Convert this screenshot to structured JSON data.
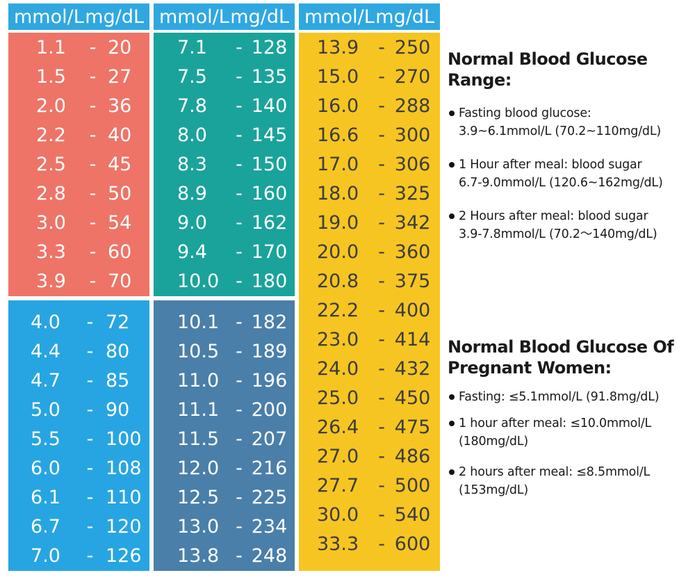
{
  "table": {
    "header": {
      "mmol": "mmol/L",
      "mg": "mg/dL"
    },
    "columns": [
      {
        "color": "#ee7467",
        "rows": [
          [
            "1.1",
            "20"
          ],
          [
            "1.5",
            "27"
          ],
          [
            "2.0",
            "36"
          ],
          [
            "2.2",
            "40"
          ],
          [
            "2.5",
            "45"
          ],
          [
            "2.8",
            "50"
          ],
          [
            "3.0",
            "54"
          ],
          [
            "3.3",
            "60"
          ],
          [
            "3.9",
            "70"
          ]
        ]
      },
      {
        "color": "#1aa39a",
        "rows": [
          [
            "7.1",
            "128"
          ],
          [
            "7.5",
            "135"
          ],
          [
            "7.8",
            "140"
          ],
          [
            "8.0",
            "145"
          ],
          [
            "8.3",
            "150"
          ],
          [
            "8.9",
            "160"
          ],
          [
            "9.0",
            "162"
          ],
          [
            "9.4",
            "170"
          ],
          [
            "10.0",
            "180"
          ]
        ]
      },
      {
        "color": "#f6c521",
        "rows": [
          [
            "13.9",
            "250"
          ],
          [
            "15.0",
            "270"
          ],
          [
            "16.0",
            "288"
          ],
          [
            "16.6",
            "300"
          ],
          [
            "17.0",
            "306"
          ],
          [
            "18.0",
            "325"
          ],
          [
            "19.0",
            "342"
          ],
          [
            "20.0",
            "360"
          ],
          [
            "20.8",
            "375"
          ],
          [
            "22.2",
            "400"
          ],
          [
            "23.0",
            "414"
          ],
          [
            "24.0",
            "432"
          ],
          [
            "25.0",
            "450"
          ],
          [
            "26.4",
            "475"
          ],
          [
            "27.0",
            "486"
          ],
          [
            "27.7",
            "500"
          ],
          [
            "30.0",
            "540"
          ],
          [
            "33.3",
            "600"
          ]
        ]
      },
      {
        "color": "#27a5e2",
        "rows": [
          [
            "4.0",
            "72"
          ],
          [
            "4.4",
            "80"
          ],
          [
            "4.7",
            "85"
          ],
          [
            "5.0",
            "90"
          ],
          [
            "5.5",
            "100"
          ],
          [
            "6.0",
            "108"
          ],
          [
            "6.1",
            "110"
          ],
          [
            "6.7",
            "120"
          ],
          [
            "7.0",
            "126"
          ]
        ]
      },
      {
        "color": "#4a7fa9",
        "rows": [
          [
            "10.1",
            "182"
          ],
          [
            "10.5",
            "189"
          ],
          [
            "11.0",
            "196"
          ],
          [
            "11.1",
            "200"
          ],
          [
            "11.5",
            "207"
          ],
          [
            "12.0",
            "216"
          ],
          [
            "12.5",
            "225"
          ],
          [
            "13.0",
            "234"
          ],
          [
            "13.8",
            "248"
          ]
        ]
      }
    ],
    "separator": "-"
  },
  "normal_range": {
    "title": "Normal Blood Glucose Range:",
    "items": [
      {
        "line1": "Fasting blood glucose:",
        "line2": "3.9~6.1mmol/L (70.2~110mg/dL)"
      },
      {
        "line1": "1 Hour after meal: blood sugar",
        "line2": "6.7-9.0mmol/L (120.6~162mg/dL)"
      },
      {
        "line1": "2 Hours after meal: blood sugar",
        "line2": "3.9-7.8mmol/L (70.2～140mg/dL)"
      }
    ]
  },
  "pregnant": {
    "title_line1": "Normal Blood Glucose Of",
    "title_line2": "Pregnant Women:",
    "items": [
      {
        "line1": "Fasting: ≤5.1mmol/L (91.8mg/dL)",
        "line2": ""
      },
      {
        "line1": "1 hour after meal: ≤10.0mmol/L",
        "line2": "(180mg/dL)"
      },
      {
        "line1": "2 hours after meal: ≤8.5mmol/L",
        "line2": "(153mg/dL)"
      }
    ]
  }
}
